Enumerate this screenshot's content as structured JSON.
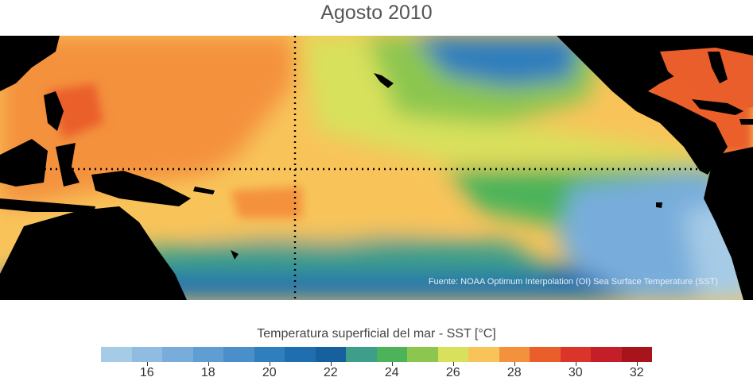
{
  "title": "Agosto 2010",
  "source": "Fuente: NOAA Optimum Interpolation (OI) Sea Surface Temperature (SST)",
  "colorbar": {
    "title": "Temperatura superficial del mar - SST  [°C]",
    "min": 15,
    "max": 33,
    "step": 1,
    "tick_labels": [
      "16",
      "18",
      "20",
      "22",
      "24",
      "26",
      "28",
      "30",
      "32"
    ],
    "tick_values": [
      16,
      18,
      20,
      22,
      24,
      26,
      28,
      30,
      32
    ],
    "colors": [
      "#a6cbe6",
      "#8fbce0",
      "#78addb",
      "#5f9dd2",
      "#4a8fc9",
      "#2f7ebd",
      "#1e6eb0",
      "#17609e",
      "#3d9e8a",
      "#4cb35a",
      "#8cc64f",
      "#d8e15c",
      "#f8c45a",
      "#f4913d",
      "#ea5e2b",
      "#d9352a",
      "#c41e28",
      "#a8141c"
    ]
  },
  "map_colors": {
    "land": "#000000",
    "warm_pool": "#f4913d",
    "hot": "#ea5e2b",
    "cold_tongue": "#4cb35a",
    "cold_south": "#4a8fc9",
    "cold_north": "#2f7ebd"
  },
  "reference_lines": {
    "equator_label": "",
    "dateline_label": ""
  }
}
